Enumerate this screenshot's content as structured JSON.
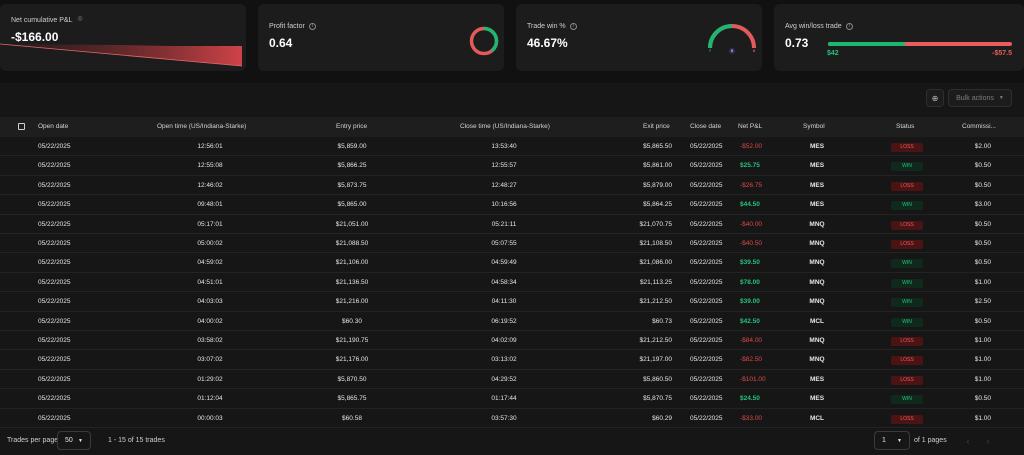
{
  "cards": {
    "net_pnl": {
      "label": "Net cumulative P&L",
      "value": "-$166.00"
    },
    "profit_factor": {
      "label": "Profit factor",
      "value": "0.64"
    },
    "trade_win": {
      "label": "Trade win %",
      "value": "46.67%",
      "wins": "7",
      "breakeven": "0",
      "losses": "8"
    },
    "avg_win_loss": {
      "label": "Avg win/loss trade",
      "value": "0.73",
      "avg_win": "$42",
      "avg_loss": "-$57.5",
      "win_fraction": 0.42
    }
  },
  "toolbar": {
    "bulk_actions": "Bulk actions"
  },
  "table": {
    "columns": {
      "open_date": "Open date",
      "open_time": "Open time (US/Indiana-Starke)",
      "entry_price": "Entry price",
      "close_time": "Close time (US/Indiana-Starke)",
      "exit_price": "Exit price",
      "close_date": "Close date",
      "net_pnl": "Net P&L",
      "symbol": "Symbol",
      "status": "Status",
      "commission": "Commissi..."
    },
    "rows": [
      {
        "open_date": "05/22/2025",
        "open_time": "12:56:01",
        "entry": "$5,859.00",
        "close_time": "13:53:40",
        "exit": "$5,865.50",
        "close_date": "05/22/2025",
        "pnl": "-$52.00",
        "symbol": "MES",
        "status": "LOSS",
        "commission": "$2.00"
      },
      {
        "open_date": "05/22/2025",
        "open_time": "12:55:08",
        "entry": "$5,866.25",
        "close_time": "12:55:57",
        "exit": "$5,861.00",
        "close_date": "05/22/2025",
        "pnl": "$25.75",
        "symbol": "MES",
        "status": "WIN",
        "commission": "$0.50"
      },
      {
        "open_date": "05/22/2025",
        "open_time": "12:46:02",
        "entry": "$5,873.75",
        "close_time": "12:48:27",
        "exit": "$5,879.00",
        "close_date": "05/22/2025",
        "pnl": "-$26.75",
        "symbol": "MES",
        "status": "LOSS",
        "commission": "$0.50"
      },
      {
        "open_date": "05/22/2025",
        "open_time": "09:48:01",
        "entry": "$5,865.00",
        "close_time": "10:16:56",
        "exit": "$5,864.25",
        "close_date": "05/22/2025",
        "pnl": "$44.50",
        "symbol": "MES",
        "status": "WIN",
        "commission": "$3.00"
      },
      {
        "open_date": "05/22/2025",
        "open_time": "05:17:01",
        "entry": "$21,051.00",
        "close_time": "05:21:11",
        "exit": "$21,070.75",
        "close_date": "05/22/2025",
        "pnl": "-$40.00",
        "symbol": "MNQ",
        "status": "LOSS",
        "commission": "$0.50"
      },
      {
        "open_date": "05/22/2025",
        "open_time": "05:00:02",
        "entry": "$21,088.50",
        "close_time": "05:07:55",
        "exit": "$21,108.50",
        "close_date": "05/22/2025",
        "pnl": "-$40.50",
        "symbol": "MNQ",
        "status": "LOSS",
        "commission": "$0.50"
      },
      {
        "open_date": "05/22/2025",
        "open_time": "04:59:02",
        "entry": "$21,106.00",
        "close_time": "04:59:49",
        "exit": "$21,086.00",
        "close_date": "05/22/2025",
        "pnl": "$39.50",
        "symbol": "MNQ",
        "status": "WIN",
        "commission": "$0.50"
      },
      {
        "open_date": "05/22/2025",
        "open_time": "04:51:01",
        "entry": "$21,136.50",
        "close_time": "04:58:34",
        "exit": "$21,113.25",
        "close_date": "05/22/2025",
        "pnl": "$78.00",
        "symbol": "MNQ",
        "status": "WIN",
        "commission": "$1.00"
      },
      {
        "open_date": "05/22/2025",
        "open_time": "04:03:03",
        "entry": "$21,216.00",
        "close_time": "04:11:30",
        "exit": "$21,212.50",
        "close_date": "05/22/2025",
        "pnl": "$39.00",
        "symbol": "MNQ",
        "status": "WIN",
        "commission": "$2.50"
      },
      {
        "open_date": "05/22/2025",
        "open_time": "04:00:02",
        "entry": "$60.30",
        "close_time": "06:19:52",
        "exit": "$60.73",
        "close_date": "05/22/2025",
        "pnl": "$42.50",
        "symbol": "MCL",
        "status": "WIN",
        "commission": "$0.50"
      },
      {
        "open_date": "05/22/2025",
        "open_time": "03:58:02",
        "entry": "$21,190.75",
        "close_time": "04:02:09",
        "exit": "$21,212.50",
        "close_date": "05/22/2025",
        "pnl": "-$84.00",
        "symbol": "MNQ",
        "status": "LOSS",
        "commission": "$1.00"
      },
      {
        "open_date": "05/22/2025",
        "open_time": "03:07:02",
        "entry": "$21,176.00",
        "close_time": "03:13:02",
        "exit": "$21,197.00",
        "close_date": "05/22/2025",
        "pnl": "-$82.50",
        "symbol": "MNQ",
        "status": "LOSS",
        "commission": "$1.00"
      },
      {
        "open_date": "05/22/2025",
        "open_time": "01:29:02",
        "entry": "$5,870.50",
        "close_time": "04:29:52",
        "exit": "$5,860.50",
        "close_date": "05/22/2025",
        "pnl": "-$101.00",
        "symbol": "MES",
        "status": "LOSS",
        "commission": "$1.00"
      },
      {
        "open_date": "05/22/2025",
        "open_time": "01:12:04",
        "entry": "$5,865.75",
        "close_time": "01:17:44",
        "exit": "$5,870.75",
        "close_date": "05/22/2025",
        "pnl": "$24.50",
        "symbol": "MES",
        "status": "WIN",
        "commission": "$0.50"
      },
      {
        "open_date": "05/22/2025",
        "open_time": "00:00:03",
        "entry": "$60.58",
        "close_time": "03:57:30",
        "exit": "$60.29",
        "close_date": "05/22/2025",
        "pnl": "-$33.00",
        "symbol": "MCL",
        "status": "LOSS",
        "commission": "$1.00"
      }
    ]
  },
  "footer": {
    "per_page_label": "Trades per page:",
    "per_page_value": "50",
    "range_text": "1 - 15 of 15 trades",
    "page_value": "1",
    "of_pages": "of 1 pages"
  },
  "colors": {
    "profit": "#27c07c",
    "loss": "#e04b4b",
    "card_bg": "#1c1c1c"
  }
}
